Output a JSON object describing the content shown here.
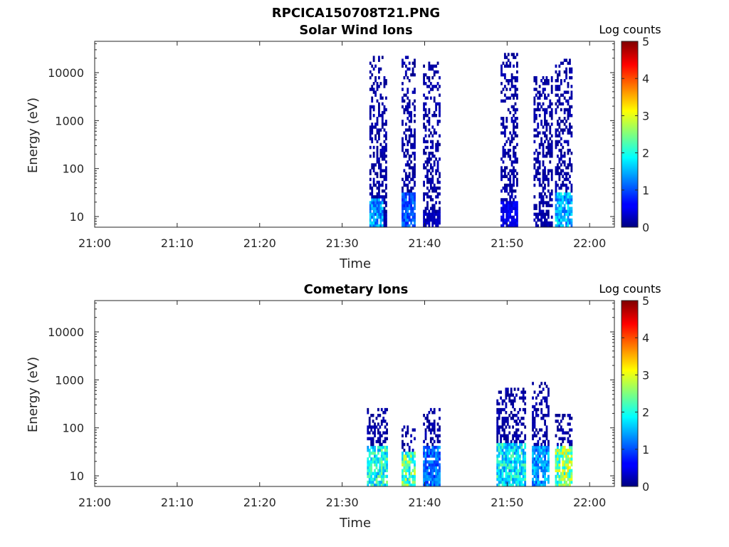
{
  "figure_title": "RPCICA150708T21.PNG",
  "colorbar": {
    "label": "Log counts",
    "min": 0,
    "max": 5,
    "ticks": [
      "0",
      "1",
      "2",
      "3",
      "4",
      "5"
    ],
    "colormap": "jet"
  },
  "chart_data": [
    {
      "type": "heatmap",
      "title": "Solar Wind Ions",
      "xlabel": "Time",
      "ylabel": "Energy (eV)",
      "x_range": [
        "21:00",
        "22:03"
      ],
      "y_scale": "log",
      "ylim": [
        6,
        45000
      ],
      "x_tick_labels": [
        "21:00",
        "21:10",
        "21:20",
        "21:30",
        "21:40",
        "21:50",
        "22:00"
      ],
      "y_tick_labels": [
        "10",
        "100",
        "1000",
        "10000"
      ],
      "bursts": [
        {
          "start": "21:33.3",
          "end": "21:34.8",
          "emax": 24000,
          "strong_emax": 25,
          "peak": 1.8
        },
        {
          "start": "21:35.0",
          "end": "21:35.3",
          "emax": 8000,
          "strong_emax": 12,
          "peak": 0.3
        },
        {
          "start": "21:37.2",
          "end": "21:38.8",
          "emax": 24000,
          "strong_emax": 30,
          "peak": 1.4
        },
        {
          "start": "21:39.8",
          "end": "21:41.7",
          "emax": 18000,
          "strong_emax": 12,
          "peak": 0.4
        },
        {
          "start": "21:49.2",
          "end": "21:51.3",
          "emax": 26000,
          "strong_emax": 20,
          "peak": 0.7
        },
        {
          "start": "21:53.2",
          "end": "21:55.5",
          "emax": 9000,
          "strong_emax": 0,
          "peak": 0.2
        },
        {
          "start": "21:55.8",
          "end": "21:57.9",
          "emax": 20000,
          "strong_emax": 30,
          "peak": 2.0
        }
      ]
    },
    {
      "type": "heatmap",
      "title": "Cometary Ions",
      "xlabel": "Time",
      "ylabel": "Energy (eV)",
      "x_range": [
        "21:00",
        "22:03"
      ],
      "y_scale": "log",
      "ylim": [
        6,
        45000
      ],
      "x_tick_labels": [
        "21:00",
        "21:10",
        "21:20",
        "21:30",
        "21:40",
        "21:50",
        "22:00"
      ],
      "y_tick_labels": [
        "10",
        "100",
        "1000",
        "10000"
      ],
      "bursts": [
        {
          "start": "21:33.0",
          "end": "21:35.5",
          "emax": 250,
          "strong_emax": 45,
          "peak": 2.6
        },
        {
          "start": "21:37.2",
          "end": "21:38.7",
          "emax": 120,
          "strong_emax": 30,
          "peak": 3.0
        },
        {
          "start": "21:39.8",
          "end": "21:41.9",
          "emax": 260,
          "strong_emax": 40,
          "peak": 1.5
        },
        {
          "start": "21:48.7",
          "end": "21:52.2",
          "emax": 700,
          "strong_emax": 50,
          "peak": 2.4
        },
        {
          "start": "21:53.0",
          "end": "21:55.0",
          "emax": 900,
          "strong_emax": 40,
          "peak": 1.8
        },
        {
          "start": "21:55.8",
          "end": "21:57.9",
          "emax": 200,
          "strong_emax": 45,
          "peak": 3.3
        }
      ]
    }
  ]
}
